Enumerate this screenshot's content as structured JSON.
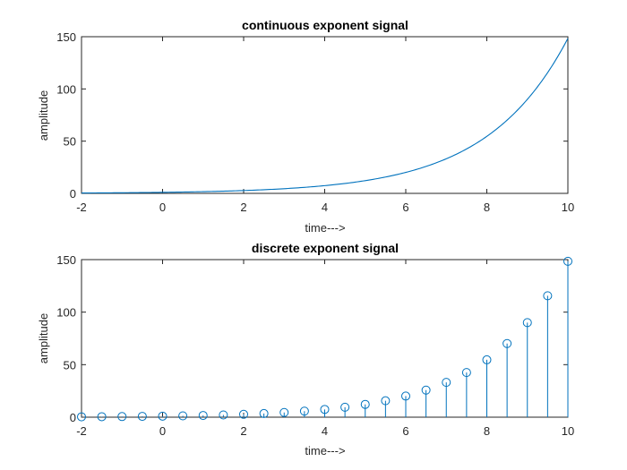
{
  "colors": {
    "series": "#0072BD",
    "axis": "#262626",
    "background": "#ffffff"
  },
  "chart_data": [
    {
      "type": "line",
      "title": "continuous exponent signal",
      "xlabel": "time--->",
      "ylabel": "amplitude",
      "xlim": [
        -2,
        10
      ],
      "ylim": [
        0,
        150
      ],
      "xticks": [
        -2,
        0,
        2,
        4,
        6,
        8,
        10
      ],
      "yticks": [
        0,
        50,
        100,
        150
      ],
      "grid": false,
      "series": [
        {
          "function": "exp(0.5*t)",
          "x": [
            -2,
            -1.5,
            -1,
            -0.5,
            0,
            0.5,
            1,
            1.5,
            2,
            2.5,
            3,
            3.5,
            4,
            4.5,
            5,
            5.5,
            6,
            6.5,
            7,
            7.5,
            8,
            8.5,
            9,
            9.5,
            10
          ],
          "y": [
            0.37,
            0.47,
            0.61,
            0.78,
            1.0,
            1.28,
            1.65,
            2.12,
            2.72,
            3.49,
            4.48,
            5.75,
            7.39,
            9.49,
            12.18,
            15.64,
            20.09,
            25.79,
            33.12,
            42.52,
            54.6,
            70.11,
            90.02,
            115.58,
            148.41
          ]
        }
      ]
    },
    {
      "type": "stem",
      "title": "discrete exponent signal",
      "xlabel": "time--->",
      "ylabel": "amplitude",
      "xlim": [
        -2,
        10
      ],
      "ylim": [
        0,
        150
      ],
      "xticks": [
        -2,
        0,
        2,
        4,
        6,
        8,
        10
      ],
      "yticks": [
        0,
        50,
        100,
        150
      ],
      "grid": false,
      "marker": "circle",
      "series": [
        {
          "function": "exp(0.5*n)",
          "x": [
            -2,
            -1.5,
            -1,
            -0.5,
            0,
            0.5,
            1,
            1.5,
            2,
            2.5,
            3,
            3.5,
            4,
            4.5,
            5,
            5.5,
            6,
            6.5,
            7,
            7.5,
            8,
            8.5,
            9,
            9.5,
            10
          ],
          "y": [
            0.37,
            0.47,
            0.61,
            0.78,
            1.0,
            1.28,
            1.65,
            2.12,
            2.72,
            3.49,
            4.48,
            5.75,
            7.39,
            9.49,
            12.18,
            15.64,
            20.09,
            25.79,
            33.12,
            42.52,
            54.6,
            70.11,
            90.02,
            115.58,
            148.41
          ]
        }
      ]
    }
  ]
}
